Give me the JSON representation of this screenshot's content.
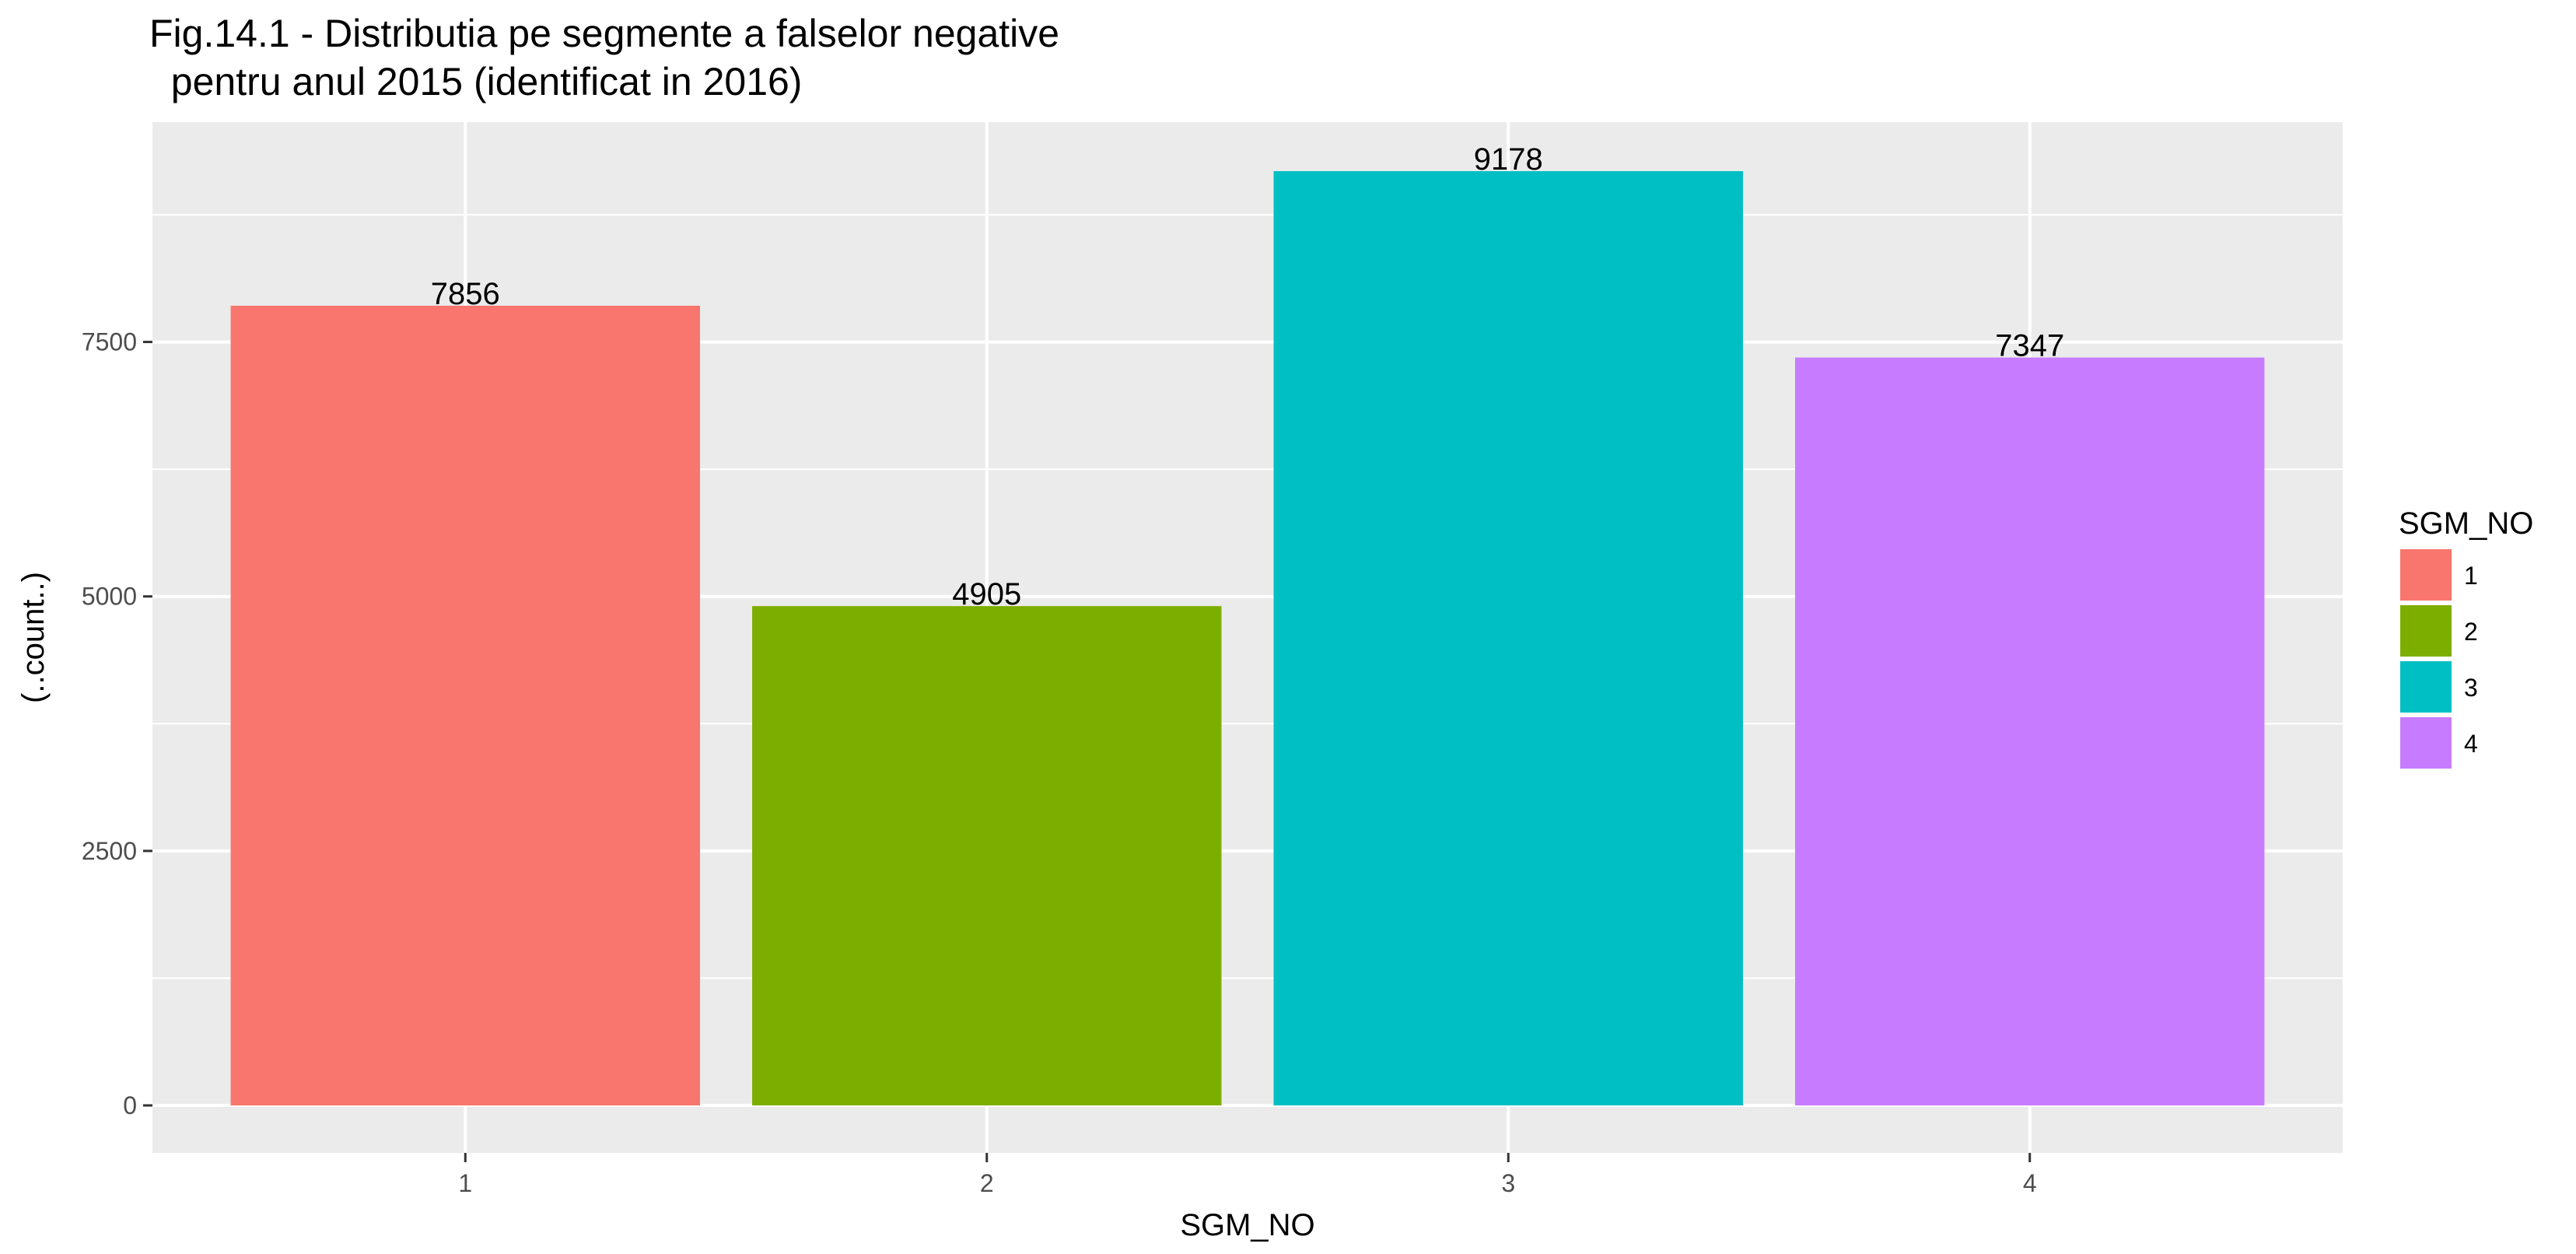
{
  "chart_data": {
    "type": "bar",
    "title_lines": [
      "Fig.14.1 - Distributia pe segmente a falselor negative",
      "  pentru anul 2015 (identificat in 2016)"
    ],
    "xlabel": "SGM_NO",
    "ylabel": "(..count..)",
    "categories": [
      "1",
      "2",
      "3",
      "4"
    ],
    "values": [
      7856,
      4905,
      9178,
      7347
    ],
    "data_labels": [
      "7856",
      "4905",
      "9178",
      "7347"
    ],
    "colors": [
      "#F8766D",
      "#7CAE00",
      "#00BFC4",
      "#C77CFF"
    ],
    "ylim": [
      0,
      9637
    ],
    "y_ticks": [
      0,
      2500,
      5000,
      7500
    ],
    "y_tick_labels": [
      "0",
      "2500",
      "5000",
      "7500"
    ],
    "grid": true,
    "panel_background": "#EBEBEB",
    "grid_color": "#FFFFFF",
    "legend": {
      "title": "SGM_NO",
      "position": "right",
      "entries": [
        "1",
        "2",
        "3",
        "4"
      ]
    }
  }
}
